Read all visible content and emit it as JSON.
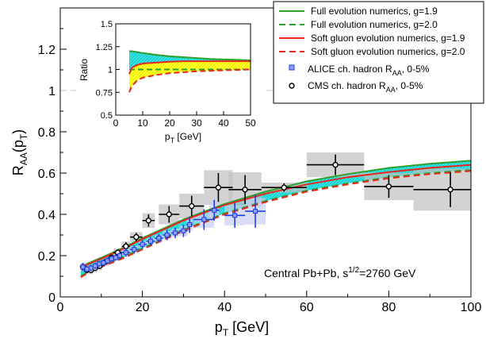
{
  "chart_data": {
    "type": "line",
    "xlabel": "p",
    "xlabel_sub": "T",
    "xlabel_unit": " [GeV]",
    "ylabel": "R",
    "ylabel_sub": "AA",
    "ylabel_arg": "(p",
    "ylabel_arg_sub": "T",
    "ylabel_close": ")",
    "xlim": [
      0,
      100
    ],
    "ylim": [
      0,
      1.4
    ],
    "x_ticks": [
      "0",
      "20",
      "40",
      "60",
      "80",
      "100"
    ],
    "y_ticks": [
      "0",
      "0.2",
      "0.4",
      "0.6",
      "0.8",
      "1",
      "1.2"
    ],
    "reference_line_y": 1,
    "annotation_main": "Central Pb+Pb, s",
    "annotation_sup": "1/2",
    "annotation_rest": "=2760 GeV",
    "series": [
      {
        "name": "Full evolution numerics, g=1.9",
        "color": "#2ca02c",
        "dash": "solid",
        "x": [
          5,
          7,
          10,
          15,
          20,
          25,
          30,
          40,
          50,
          60,
          70,
          80,
          90,
          100
        ],
        "values": [
          0.145,
          0.165,
          0.19,
          0.235,
          0.285,
          0.33,
          0.375,
          0.45,
          0.51,
          0.56,
          0.595,
          0.625,
          0.645,
          0.66
        ]
      },
      {
        "name": "Full evolution numerics, g=2.0",
        "color": "#2ca02c",
        "dash": "dashed",
        "x": [
          5,
          7,
          10,
          15,
          20,
          25,
          30,
          40,
          50,
          60,
          70,
          80,
          90,
          100
        ],
        "values": [
          0.1,
          0.125,
          0.15,
          0.19,
          0.235,
          0.28,
          0.325,
          0.405,
          0.465,
          0.515,
          0.55,
          0.58,
          0.6,
          0.615
        ]
      },
      {
        "name": "Soft gluon evolution numerics, g=1.9",
        "color": "#e8281e",
        "dash": "solid",
        "x": [
          5,
          7,
          10,
          15,
          20,
          25,
          30,
          40,
          50,
          60,
          70,
          80,
          90,
          100
        ],
        "values": [
          0.14,
          0.16,
          0.185,
          0.23,
          0.28,
          0.325,
          0.37,
          0.445,
          0.5,
          0.545,
          0.58,
          0.605,
          0.625,
          0.64
        ]
      },
      {
        "name": "Soft gluon evolution numerics, g=2.0",
        "color": "#e8281e",
        "dash": "dashed",
        "x": [
          5,
          7,
          10,
          15,
          20,
          25,
          30,
          40,
          50,
          60,
          70,
          80,
          90,
          100
        ],
        "values": [
          0.095,
          0.12,
          0.145,
          0.185,
          0.23,
          0.275,
          0.32,
          0.4,
          0.46,
          0.51,
          0.545,
          0.575,
          0.595,
          0.61
        ]
      }
    ],
    "alice": {
      "name": "ALICE ch. hadron R",
      "name_sub": "AA",
      "name_rest": ", 0-5%",
      "color": "#1f3ee0",
      "points": [
        {
          "x": 5.5,
          "y": 0.145,
          "ex": 0.5,
          "ey": 0.02
        },
        {
          "x": 6.5,
          "y": 0.135,
          "ex": 0.5,
          "ey": 0.015
        },
        {
          "x": 7.5,
          "y": 0.14,
          "ex": 0.5,
          "ey": 0.015
        },
        {
          "x": 8.5,
          "y": 0.15,
          "ex": 0.5,
          "ey": 0.015
        },
        {
          "x": 9.5,
          "y": 0.16,
          "ex": 0.5,
          "ey": 0.015
        },
        {
          "x": 10.5,
          "y": 0.165,
          "ex": 0.5,
          "ey": 0.015
        },
        {
          "x": 11.5,
          "y": 0.175,
          "ex": 0.5,
          "ey": 0.015
        },
        {
          "x": 12.5,
          "y": 0.185,
          "ex": 0.5,
          "ey": 0.015
        },
        {
          "x": 13.5,
          "y": 0.19,
          "ex": 0.5,
          "ey": 0.015
        },
        {
          "x": 14.5,
          "y": 0.2,
          "ex": 0.5,
          "ey": 0.015
        },
        {
          "x": 16,
          "y": 0.215,
          "ex": 1,
          "ey": 0.02
        },
        {
          "x": 18,
          "y": 0.23,
          "ex": 1,
          "ey": 0.02
        },
        {
          "x": 20,
          "y": 0.255,
          "ex": 1,
          "ey": 0.02
        },
        {
          "x": 22,
          "y": 0.27,
          "ex": 1,
          "ey": 0.02
        },
        {
          "x": 24,
          "y": 0.285,
          "ex": 1,
          "ey": 0.02
        },
        {
          "x": 26,
          "y": 0.3,
          "ex": 1,
          "ey": 0.025
        },
        {
          "x": 28,
          "y": 0.31,
          "ex": 1,
          "ey": 0.025
        },
        {
          "x": 30,
          "y": 0.32,
          "ex": 1,
          "ey": 0.03
        },
        {
          "x": 31.5,
          "y": 0.35,
          "ex": 0.75,
          "ey": 0.04
        },
        {
          "x": 35,
          "y": 0.375,
          "ex": 2.5,
          "ey": 0.05
        },
        {
          "x": 37.5,
          "y": 0.42,
          "ex": 1.25,
          "ey": 0.05
        },
        {
          "x": 42.5,
          "y": 0.395,
          "ex": 2.5,
          "ey": 0.06
        },
        {
          "x": 47.5,
          "y": 0.415,
          "ex": 2.5,
          "ey": 0.08
        }
      ]
    },
    "cms": {
      "name": "CMS ch. hadron R",
      "name_sub": "AA",
      "name_rest": ", 0-5%",
      "color": "#000000",
      "points": [
        {
          "x": 5.5,
          "y": 0.145,
          "ex": 0.5,
          "ey": 0.01
        },
        {
          "x": 6.5,
          "y": 0.13,
          "ex": 0.5,
          "ey": 0.01
        },
        {
          "x": 7.5,
          "y": 0.13,
          "ex": 0.5,
          "ey": 0.01
        },
        {
          "x": 8.5,
          "y": 0.14,
          "ex": 0.5,
          "ey": 0.01
        },
        {
          "x": 9.6,
          "y": 0.15,
          "ex": 0.6,
          "ey": 0.01
        },
        {
          "x": 11,
          "y": 0.17,
          "ex": 0.8,
          "ey": 0.01
        },
        {
          "x": 12.5,
          "y": 0.19,
          "ex": 0.8,
          "ey": 0.015
        },
        {
          "x": 14,
          "y": 0.215,
          "ex": 1,
          "ey": 0.015
        },
        {
          "x": 16,
          "y": 0.245,
          "ex": 1,
          "ey": 0.02
        },
        {
          "x": 18.5,
          "y": 0.29,
          "ex": 1.5,
          "ey": 0.02
        },
        {
          "x": 21.5,
          "y": 0.37,
          "ex": 1.5,
          "ey": 0.03
        },
        {
          "x": 26.5,
          "y": 0.4,
          "ex": 2.5,
          "ey": 0.04
        },
        {
          "x": 32,
          "y": 0.44,
          "ex": 3,
          "ey": 0.05
        },
        {
          "x": 38.5,
          "y": 0.53,
          "ex": 3.5,
          "ey": 0.07
        },
        {
          "x": 45,
          "y": 0.52,
          "ex": 4,
          "ey": 0.07
        },
        {
          "x": 54.5,
          "y": 0.53,
          "ex": 5.5,
          "ey": 0.02
        },
        {
          "x": 67,
          "y": 0.64,
          "ex": 7,
          "ey": 0.05
        },
        {
          "x": 80,
          "y": 0.535,
          "ex": 6,
          "ey": 0.055
        },
        {
          "x": 95,
          "y": 0.52,
          "ex": 9,
          "ey": 0.085
        }
      ]
    },
    "inset": {
      "xlabel": "p",
      "xlabel_sub": "T",
      "xlabel_unit": " [GeV]",
      "ylabel": "Ratio",
      "xlim": [
        0,
        50
      ],
      "ylim": [
        0.5,
        1.5
      ],
      "x_ticks": [
        "0",
        "10",
        "20",
        "30",
        "40",
        "50"
      ],
      "y_ticks": [
        "0.5",
        "0.75",
        "1",
        "1.25",
        "1.5"
      ],
      "x": [
        5,
        6,
        8,
        10,
        15,
        20,
        25,
        30,
        35,
        40,
        45,
        50
      ],
      "full_upper": [
        1.2,
        1.2,
        1.19,
        1.18,
        1.16,
        1.145,
        1.135,
        1.125,
        1.115,
        1.11,
        1.105,
        1.1
      ],
      "soft_upper": [
        0.95,
        1.02,
        1.05,
        1.065,
        1.075,
        1.085,
        1.09,
        1.09,
        1.09,
        1.09,
        1.09,
        1.09
      ],
      "full_lower": [
        1.0,
        1.0,
        1.0,
        1.0,
        1.0,
        1.0,
        1.0,
        1.0,
        1.0,
        1.0,
        1.0,
        1.0
      ],
      "soft_lower": [
        0.75,
        0.82,
        0.88,
        0.91,
        0.94,
        0.96,
        0.97,
        0.98,
        0.985,
        0.99,
        0.995,
        1.0
      ]
    }
  }
}
